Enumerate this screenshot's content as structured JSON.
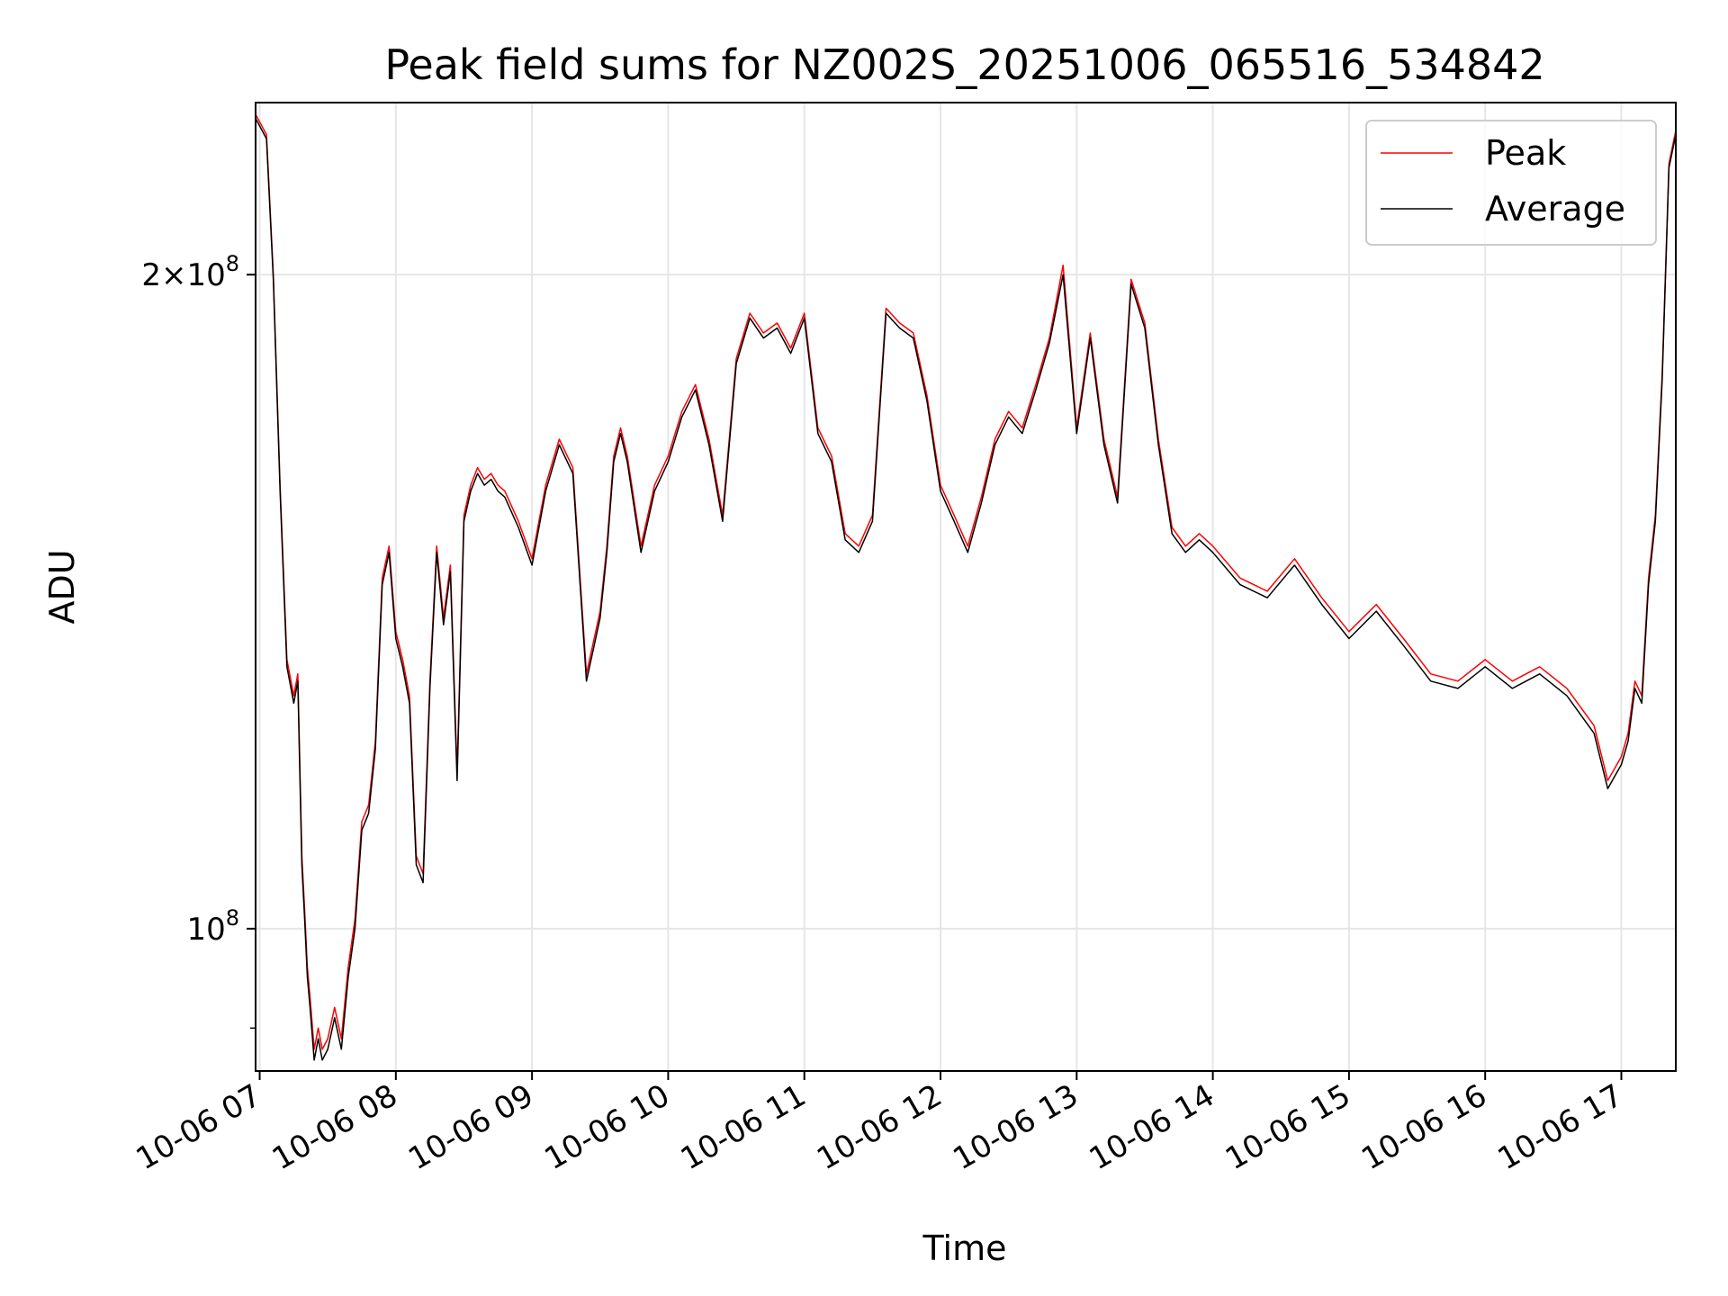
{
  "chart_data": {
    "type": "line",
    "title": "Peak field sums for NZ002S_20251006_065516_534842",
    "xlabel": "Time",
    "ylabel": "ADU",
    "yscale": "log",
    "ylim": [
      86000000,
      240000000
    ],
    "xlim_hours": [
      6.97,
      17.4
    ],
    "x_ticks": [
      {
        "label": "10-06 07",
        "hour": 7
      },
      {
        "label": "10-06 08",
        "hour": 8
      },
      {
        "label": "10-06 09",
        "hour": 9
      },
      {
        "label": "10-06 10",
        "hour": 10
      },
      {
        "label": "10-06 11",
        "hour": 11
      },
      {
        "label": "10-06 12",
        "hour": 12
      },
      {
        "label": "10-06 13",
        "hour": 13
      },
      {
        "label": "10-06 14",
        "hour": 14
      },
      {
        "label": "10-06 15",
        "hour": 15
      },
      {
        "label": "10-06 16",
        "hour": 16
      },
      {
        "label": "10-06 17",
        "hour": 17
      }
    ],
    "y_ticks": [
      {
        "value": 100000000,
        "base": "10",
        "exp": "8",
        "mantissa": ""
      },
      {
        "value": 200000000,
        "base": "10",
        "exp": "8",
        "mantissa": "2"
      }
    ],
    "grid": true,
    "legend": {
      "position": "upper right"
    },
    "series": [
      {
        "name": "Peak",
        "color": "#ff0000",
        "x": [
          6.97,
          7.05,
          7.1,
          7.15,
          7.2,
          7.25,
          7.28,
          7.31,
          7.33,
          7.35,
          7.37,
          7.4,
          7.43,
          7.46,
          7.5,
          7.55,
          7.6,
          7.65,
          7.7,
          7.75,
          7.8,
          7.85,
          7.9,
          7.95,
          8.0,
          8.05,
          8.1,
          8.15,
          8.2,
          8.25,
          8.3,
          8.35,
          8.4,
          8.45,
          8.5,
          8.55,
          8.6,
          8.65,
          8.7,
          8.75,
          8.8,
          8.9,
          9.0,
          9.1,
          9.2,
          9.3,
          9.4,
          9.5,
          9.55,
          9.6,
          9.65,
          9.7,
          9.8,
          9.9,
          10.0,
          10.1,
          10.2,
          10.3,
          10.4,
          10.5,
          10.6,
          10.7,
          10.8,
          10.9,
          11.0,
          11.1,
          11.2,
          11.3,
          11.4,
          11.5,
          11.6,
          11.7,
          11.8,
          11.9,
          12.0,
          12.1,
          12.2,
          12.3,
          12.4,
          12.5,
          12.6,
          12.7,
          12.8,
          12.9,
          13.0,
          13.1,
          13.2,
          13.3,
          13.4,
          13.5,
          13.6,
          13.7,
          13.8,
          13.9,
          14.0,
          14.2,
          14.4,
          14.6,
          14.8,
          15.0,
          15.2,
          15.4,
          15.6,
          15.8,
          16.0,
          16.2,
          16.4,
          16.6,
          16.8,
          16.9,
          17.0,
          17.05,
          17.1,
          17.15,
          17.2,
          17.25,
          17.3,
          17.35,
          17.4
        ],
        "y": [
          237000000,
          232000000,
          200000000,
          160000000,
          133000000,
          128000000,
          131000000,
          108000000,
          102000000,
          96000000,
          93000000,
          88000000,
          90000000,
          88000000,
          89000000,
          92000000,
          89000000,
          96000000,
          101000000,
          112000000,
          114000000,
          122000000,
          145000000,
          150000000,
          137000000,
          133000000,
          128000000,
          108000000,
          106000000,
          130000000,
          150000000,
          139000000,
          147000000,
          118000000,
          155000000,
          160000000,
          163000000,
          161000000,
          162000000,
          160000000,
          159000000,
          154000000,
          148000000,
          160000000,
          168000000,
          163000000,
          131000000,
          140000000,
          150000000,
          165000000,
          170000000,
          165000000,
          150000000,
          160000000,
          165000000,
          173000000,
          178000000,
          168000000,
          155000000,
          183000000,
          192000000,
          188000000,
          190000000,
          185000000,
          192000000,
          170000000,
          165000000,
          152000000,
          150000000,
          155000000,
          193000000,
          190000000,
          188000000,
          176000000,
          160000000,
          155000000,
          150000000,
          158000000,
          168000000,
          173000000,
          170000000,
          178000000,
          187000000,
          202000000,
          170000000,
          188000000,
          168000000,
          158000000,
          199000000,
          190000000,
          168000000,
          153000000,
          150000000,
          152000000,
          150000000,
          145000000,
          143000000,
          148000000,
          142000000,
          137000000,
          141000000,
          136000000,
          131000000,
          130000000,
          133000000,
          130000000,
          132000000,
          129000000,
          124000000,
          117000000,
          120000000,
          123000000,
          130000000,
          128000000,
          145000000,
          155000000,
          180000000,
          225000000,
          233000000
        ],
        "line_width": 1.5
      },
      {
        "name": "Average",
        "color": "#000000",
        "x": [
          6.97,
          7.05,
          7.1,
          7.15,
          7.2,
          7.25,
          7.28,
          7.31,
          7.33,
          7.35,
          7.37,
          7.4,
          7.43,
          7.46,
          7.5,
          7.55,
          7.6,
          7.65,
          7.7,
          7.75,
          7.8,
          7.85,
          7.9,
          7.95,
          8.0,
          8.05,
          8.1,
          8.15,
          8.2,
          8.25,
          8.3,
          8.35,
          8.4,
          8.45,
          8.5,
          8.55,
          8.6,
          8.65,
          8.7,
          8.75,
          8.8,
          8.9,
          9.0,
          9.1,
          9.2,
          9.3,
          9.4,
          9.5,
          9.55,
          9.6,
          9.65,
          9.7,
          9.8,
          9.9,
          10.0,
          10.1,
          10.2,
          10.3,
          10.4,
          10.5,
          10.6,
          10.7,
          10.8,
          10.9,
          11.0,
          11.1,
          11.2,
          11.3,
          11.4,
          11.5,
          11.6,
          11.7,
          11.8,
          11.9,
          12.0,
          12.1,
          12.2,
          12.3,
          12.4,
          12.5,
          12.6,
          12.7,
          12.8,
          12.9,
          13.0,
          13.1,
          13.2,
          13.3,
          13.4,
          13.5,
          13.6,
          13.7,
          13.8,
          13.9,
          14.0,
          14.2,
          14.4,
          14.6,
          14.8,
          15.0,
          15.2,
          15.4,
          15.6,
          15.8,
          16.0,
          16.2,
          16.4,
          16.6,
          16.8,
          16.9,
          17.0,
          17.05,
          17.1,
          17.15,
          17.2,
          17.25,
          17.3,
          17.35,
          17.4
        ],
        "y": [
          236000000,
          231000000,
          199000000,
          159000000,
          132000000,
          127000000,
          130000000,
          107000000,
          101000000,
          95000000,
          92000000,
          87000000,
          89000000,
          87000000,
          88000000,
          91000000,
          88000000,
          95000000,
          100000000,
          111000000,
          113000000,
          121000000,
          144000000,
          149000000,
          136000000,
          132000000,
          127000000,
          107000000,
          105000000,
          129000000,
          149000000,
          138000000,
          146000000,
          117000000,
          154000000,
          159000000,
          162000000,
          160000000,
          161000000,
          159000000,
          158000000,
          153000000,
          147000000,
          159000000,
          167000000,
          162000000,
          130000000,
          139000000,
          149000000,
          164000000,
          169000000,
          164000000,
          149000000,
          159000000,
          164000000,
          172000000,
          177000000,
          167000000,
          154000000,
          182000000,
          191000000,
          187000000,
          189000000,
          184000000,
          191000000,
          169000000,
          164000000,
          151000000,
          149000000,
          154000000,
          192000000,
          189000000,
          187000000,
          175000000,
          159000000,
          154000000,
          149000000,
          157000000,
          167000000,
          172000000,
          169000000,
          177000000,
          186000000,
          200000000,
          169000000,
          187000000,
          167000000,
          157000000,
          198000000,
          189000000,
          167000000,
          152000000,
          149000000,
          151000000,
          149000000,
          144000000,
          142000000,
          147000000,
          141000000,
          136000000,
          140000000,
          135000000,
          130000000,
          129000000,
          132000000,
          129000000,
          131000000,
          128000000,
          123000000,
          116000000,
          119000000,
          122000000,
          129000000,
          127000000,
          144000000,
          154000000,
          179000000,
          224000000,
          232000000
        ],
        "line_width": 1.5
      }
    ]
  }
}
